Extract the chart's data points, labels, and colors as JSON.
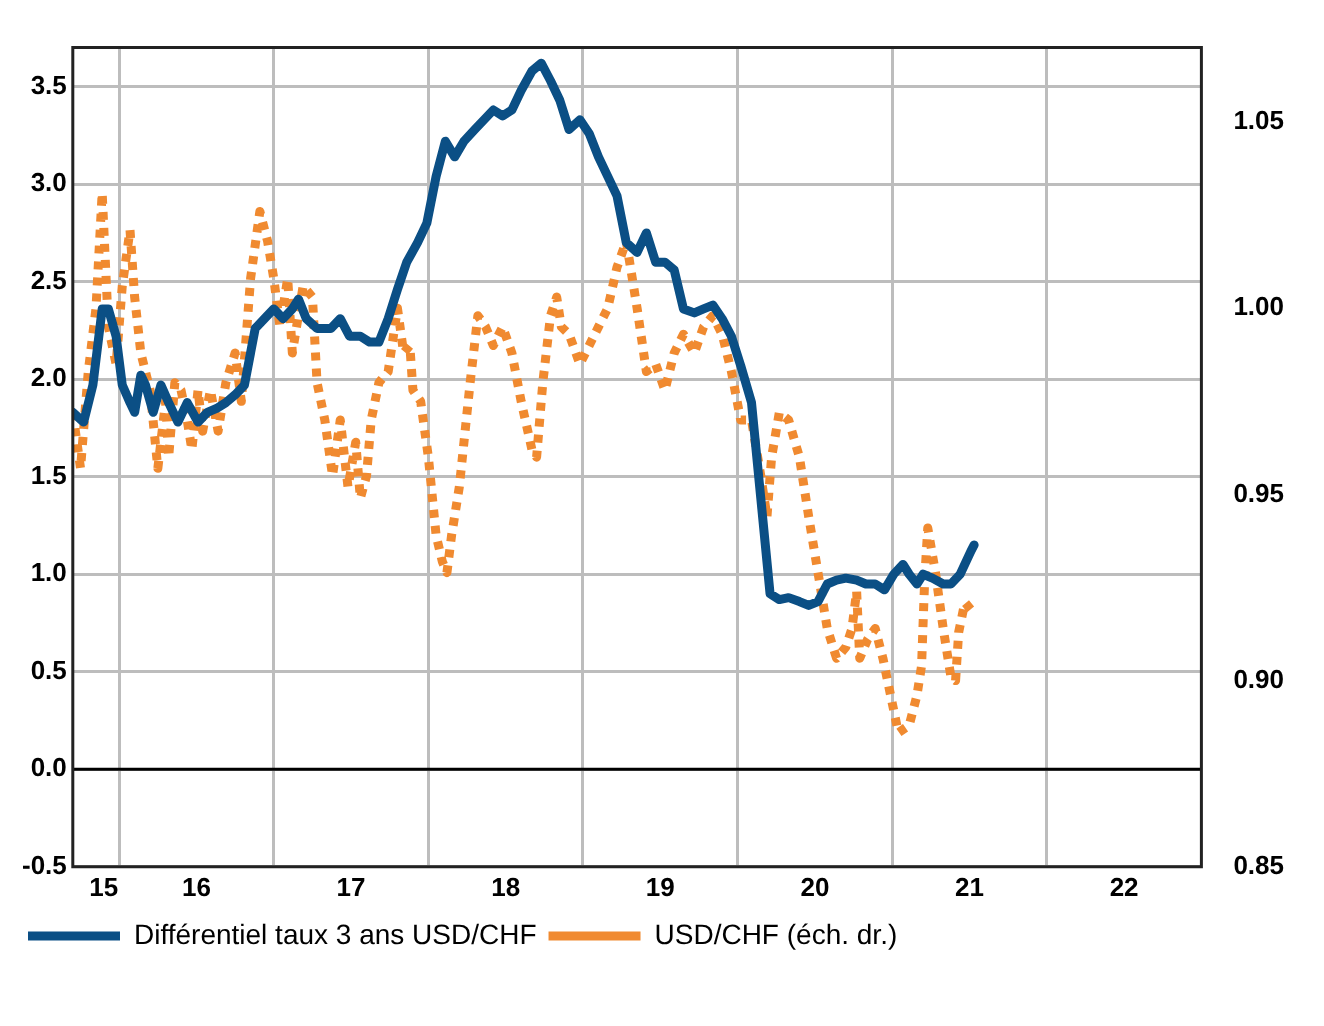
{
  "chart_data": {
    "type": "line",
    "xlim": [
      15.2,
      22.5
    ],
    "xticks": [
      {
        "value": 15.4,
        "label": "15"
      },
      {
        "value": 15.5,
        "label": null
      },
      16,
      {
        "value": 16.5,
        "label": null
      },
      17,
      {
        "value": 17.5,
        "label": null
      },
      18,
      {
        "value": 18.5,
        "label": null
      },
      19,
      {
        "value": 19.5,
        "label": null
      },
      20,
      {
        "value": 20.5,
        "label": null
      },
      21,
      {
        "value": 21.5,
        "label": null
      },
      22
    ],
    "ylim": [
      -0.5,
      3.7
    ],
    "yticks": [
      {
        "value": -0.5,
        "label": "-0.5"
      },
      {
        "value": 0,
        "label": "0.0"
      },
      {
        "value": 0.5,
        "label": "0.5"
      },
      {
        "value": 1,
        "label": "1.0"
      },
      {
        "value": 1.5,
        "label": "1.5"
      },
      {
        "value": 2,
        "label": "2.0"
      },
      {
        "value": 2.5,
        "label": "2.5"
      },
      {
        "value": 3,
        "label": "3.0"
      },
      {
        "value": 3.5,
        "label": "3.5"
      }
    ],
    "y2lim": [
      0.85,
      1.07
    ],
    "y2ticks": [
      {
        "value": 0.85,
        "label": "0.85"
      },
      {
        "value": 0.9,
        "label": "0.90"
      },
      {
        "value": 0.95,
        "label": "0.95"
      },
      {
        "value": 1,
        "label": "1.00"
      },
      {
        "value": 1.05,
        "label": "1.05"
      }
    ],
    "grid": true,
    "legend": "bottom left",
    "ref_lines": [
      {
        "axis": "y",
        "value": 0,
        "color": "#000000"
      }
    ],
    "series": [
      {
        "name": "Différentiel taux 3 ans USD/CHF",
        "color": "#0b4f85",
        "line_style": "solid",
        "x": [
          15.2,
          15.27,
          15.33,
          15.39,
          15.43,
          15.48,
          15.52,
          15.57,
          15.6,
          15.64,
          15.67,
          15.72,
          15.77,
          15.82,
          15.88,
          15.94,
          16.01,
          16.07,
          16.13,
          16.19,
          16.25,
          16.31,
          16.38,
          16.44,
          16.5,
          16.56,
          16.62,
          16.66,
          16.71,
          16.78,
          16.87,
          16.93,
          16.99,
          17.06,
          17.12,
          17.18,
          17.24,
          17.3,
          17.36,
          17.43,
          17.49,
          17.55,
          17.61,
          17.67,
          17.73,
          17.8,
          17.86,
          17.92,
          17.98,
          18.04,
          18.1,
          18.17,
          18.23,
          18.29,
          18.35,
          18.41,
          18.48,
          18.54,
          18.6,
          18.66,
          18.72,
          18.78,
          18.85,
          18.91,
          18.97,
          19.03,
          19.09,
          19.15,
          19.22,
          19.28,
          19.34,
          19.4,
          19.46,
          19.52,
          19.59,
          19.65,
          19.71,
          19.77,
          19.83,
          19.9,
          19.96,
          20.02,
          20.08,
          20.14,
          20.2,
          20.27,
          20.33,
          20.39,
          20.45,
          20.51,
          20.57,
          20.61,
          20.66,
          20.7,
          20.76,
          20.83,
          20.88,
          20.94,
          21.01,
          21.03
        ],
        "values": [
          1.83,
          1.78,
          1.97,
          2.36,
          2.36,
          2.22,
          1.97,
          1.88,
          1.83,
          2.02,
          1.97,
          1.83,
          1.97,
          1.88,
          1.78,
          1.88,
          1.78,
          1.83,
          1.85,
          1.88,
          1.92,
          1.97,
          2.26,
          2.31,
          2.36,
          2.31,
          2.36,
          2.41,
          2.31,
          2.26,
          2.26,
          2.31,
          2.22,
          2.22,
          2.19,
          2.19,
          2.31,
          2.46,
          2.6,
          2.7,
          2.8,
          3.04,
          3.22,
          3.14,
          3.22,
          3.28,
          3.33,
          3.38,
          3.35,
          3.38,
          3.48,
          3.58,
          3.62,
          3.53,
          3.43,
          3.28,
          3.33,
          3.26,
          3.14,
          3.04,
          2.94,
          2.7,
          2.65,
          2.75,
          2.6,
          2.6,
          2.56,
          2.36,
          2.34,
          2.36,
          2.38,
          2.31,
          2.22,
          2.07,
          1.88,
          1.39,
          0.9,
          0.87,
          0.88,
          0.86,
          0.84,
          0.86,
          0.95,
          0.97,
          0.98,
          0.97,
          0.95,
          0.95,
          0.92,
          1.0,
          1.05,
          1.0,
          0.95,
          1.0,
          0.98,
          0.95,
          0.95,
          1.0,
          1.12,
          1.15
        ]
      },
      {
        "name": "USD/CHF (éch. dr.)",
        "color": "#f08a30",
        "line_style": "dotted",
        "axis": "y2",
        "x": [
          15.2,
          15.25,
          15.3,
          15.35,
          15.39,
          15.43,
          15.48,
          15.52,
          15.57,
          15.6,
          15.64,
          15.7,
          15.75,
          15.8,
          15.82,
          15.86,
          15.9,
          15.94,
          15.97,
          16.01,
          16.04,
          16.09,
          16.14,
          16.19,
          16.25,
          16.29,
          16.35,
          16.41,
          16.46,
          16.5,
          16.54,
          16.59,
          16.62,
          16.69,
          16.75,
          16.78,
          16.83,
          16.88,
          16.93,
          16.98,
          17.03,
          17.06,
          17.1,
          17.13,
          17.18,
          17.24,
          17.3,
          17.34,
          17.38,
          17.4,
          17.45,
          17.5,
          17.55,
          17.59,
          17.62,
          17.65,
          17.7,
          17.73,
          17.77,
          17.82,
          17.87,
          17.92,
          17.98,
          18.04,
          18.1,
          18.17,
          18.2,
          18.24,
          18.29,
          18.33,
          18.36,
          18.41,
          18.48,
          18.54,
          18.6,
          18.66,
          18.72,
          18.78,
          18.85,
          18.91,
          18.97,
          19.03,
          19.09,
          19.15,
          19.22,
          19.28,
          19.34,
          19.4,
          19.46,
          19.52,
          19.59,
          19.65,
          19.69,
          19.72,
          19.77,
          19.83,
          19.9,
          19.96,
          20.02,
          20.08,
          20.14,
          20.2,
          20.24,
          20.27,
          20.29,
          20.34,
          20.39,
          20.44,
          20.49,
          20.54,
          20.61,
          20.66,
          20.69,
          20.71,
          20.73,
          20.78,
          20.83,
          20.88,
          20.91,
          20.93,
          20.97,
          21.03
        ],
        "values": [
          0.972,
          0.957,
          0.983,
          1.0,
          1.031,
          0.995,
          0.985,
          1.006,
          1.021,
          1.003,
          0.988,
          0.978,
          0.957,
          0.975,
          0.96,
          0.98,
          0.978,
          0.97,
          0.962,
          0.978,
          0.967,
          0.978,
          0.967,
          0.98,
          0.988,
          0.975,
          1.008,
          1.026,
          1.018,
          1.008,
          0.995,
          1.008,
          0.988,
          1.006,
          1.003,
          0.98,
          0.97,
          0.955,
          0.97,
          0.952,
          0.964,
          0.949,
          0.955,
          0.97,
          0.98,
          0.983,
          1.0,
          0.988,
          0.99,
          0.978,
          0.975,
          0.96,
          0.939,
          0.932,
          0.929,
          0.939,
          0.952,
          0.964,
          0.98,
          0.998,
          0.995,
          0.99,
          0.995,
          0.988,
          0.975,
          0.962,
          0.96,
          0.98,
          0.998,
          1.003,
          0.995,
          0.993,
          0.985,
          0.99,
          0.995,
          1.0,
          1.011,
          1.018,
          1.0,
          0.983,
          0.985,
          0.978,
          0.988,
          0.993,
          0.988,
          0.995,
          0.998,
          0.993,
          0.983,
          0.97,
          0.97,
          0.955,
          0.944,
          0.96,
          0.972,
          0.97,
          0.96,
          0.944,
          0.929,
          0.914,
          0.906,
          0.909,
          0.914,
          0.924,
          0.906,
          0.911,
          0.914,
          0.906,
          0.896,
          0.886,
          0.888,
          0.896,
          0.904,
          0.927,
          0.941,
          0.929,
          0.914,
          0.901,
          0.9,
          0.913,
          0.921,
          0.918
        ]
      }
    ]
  }
}
